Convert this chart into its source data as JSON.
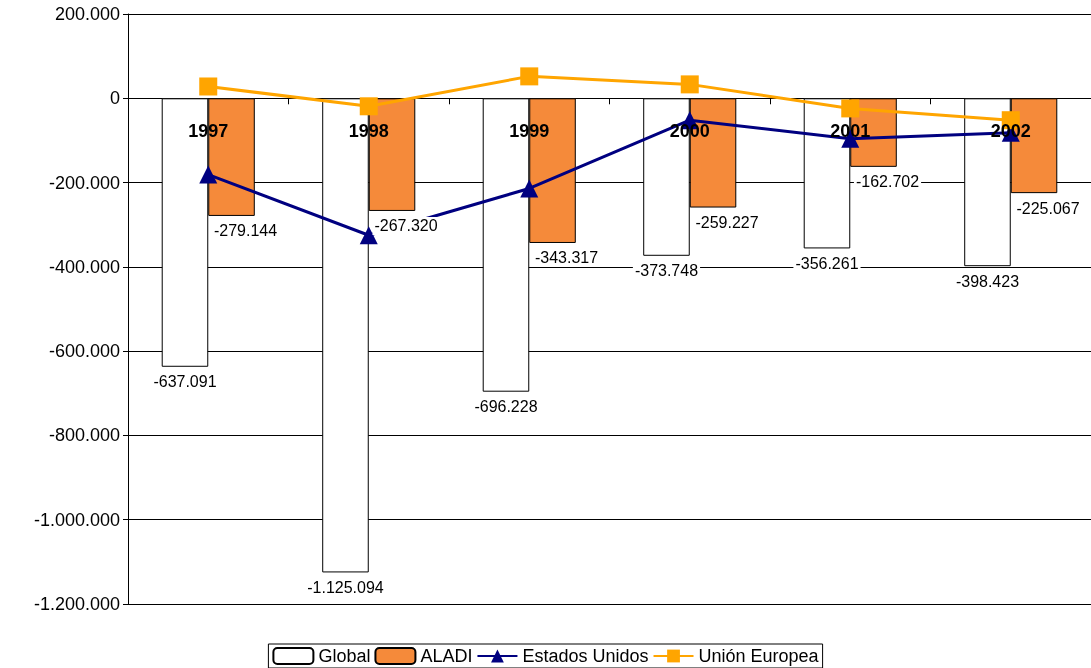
{
  "chart_data": {
    "type": "bar",
    "categories": [
      "1997",
      "1998",
      "1999",
      "2000",
      "2001",
      "2002"
    ],
    "series": [
      {
        "name": "Global",
        "color": "#ffffff",
        "values": [
          -637091,
          -1125094,
          -696228,
          -373748,
          -356261,
          -398423
        ],
        "value_labels": [
          "-637.091",
          "-1.125.094",
          "-696.228",
          "-373.748",
          "-356.261",
          "-398.423"
        ]
      },
      {
        "name": "ALADI",
        "color": "#f58a3a",
        "values": [
          -279144,
          -267320,
          -343317,
          -259227,
          -162702,
          -225067
        ],
        "value_labels": [
          "-279.144",
          "-267.320",
          "-343.317",
          "-259.227",
          "-162.702",
          "-225.067"
        ]
      },
      {
        "name": "Estados Unidos",
        "type": "line",
        "color": "#000080",
        "marker": "triangle",
        "values": [
          -181000,
          -325000,
          -214000,
          -52000,
          -96000,
          -82000
        ]
      },
      {
        "name": "Unión Europea",
        "type": "line",
        "color": "#ffa500",
        "marker": "square",
        "values": [
          28000,
          -19000,
          52000,
          33000,
          -24000,
          -52000
        ]
      }
    ],
    "ylim": [
      -1200000,
      200000
    ],
    "yticks": [
      {
        "value": -1200000,
        "label": "-1.200.000"
      },
      {
        "value": -1000000,
        "label": "-1.000.000"
      },
      {
        "value": -800000,
        "label": "-800.000"
      },
      {
        "value": -600000,
        "label": "-600.000"
      },
      {
        "value": -400000,
        "label": "-400.000"
      },
      {
        "value": -200000,
        "label": "-200.000"
      },
      {
        "value": 0,
        "label": "0"
      },
      {
        "value": 200000,
        "label": "200.000"
      }
    ],
    "grid": "y",
    "legend": "bottom"
  }
}
